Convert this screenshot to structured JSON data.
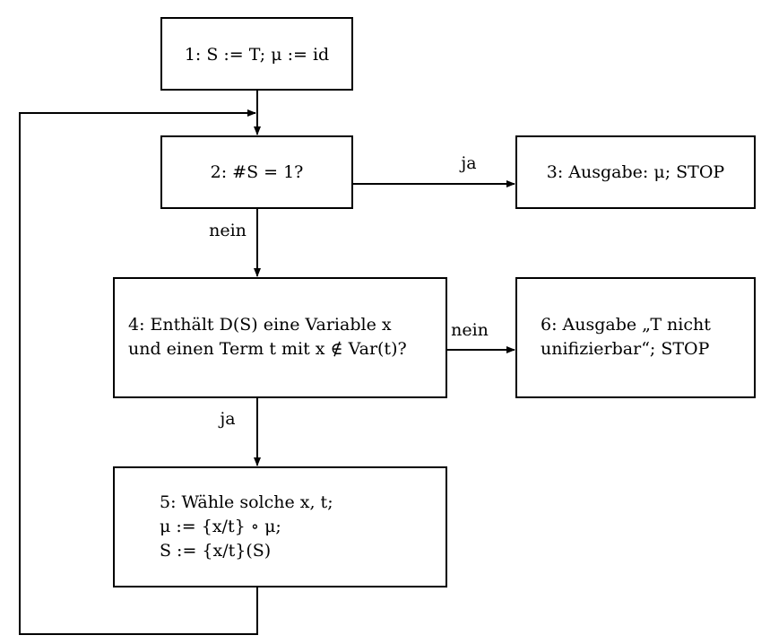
{
  "diagram": {
    "nodes": {
      "n1": {
        "lines": [
          "1: S := T; μ := id"
        ]
      },
      "n2": {
        "lines": [
          "2: #S = 1?"
        ]
      },
      "n3": {
        "lines": [
          "3: Ausgabe: μ; STOP"
        ]
      },
      "n4": {
        "lines": [
          "4: Enthält D(S) eine Variable x",
          "und einen Term t mit x ∉ Var(t)?"
        ]
      },
      "n5": {
        "lines": [
          "5: Wähle solche x, t;",
          "μ := {x/t} ∘ μ;",
          "S := {x/t}(S)"
        ]
      },
      "n6": {
        "lines": [
          "6: Ausgabe „T  nicht",
          "unifizierbar“; STOP"
        ]
      }
    },
    "edge_labels": {
      "n2_to_n3": "ja",
      "n2_to_n4": "nein",
      "n4_to_n6": "nein",
      "n4_to_n5": "ja"
    }
  }
}
